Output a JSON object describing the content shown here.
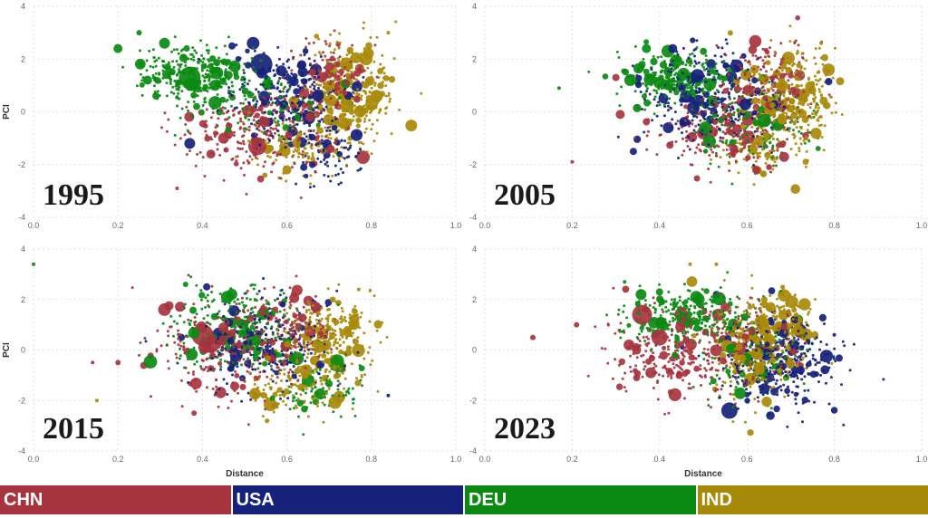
{
  "legend": {
    "items": [
      {
        "label": "CHN",
        "color": "#a6343f"
      },
      {
        "label": "USA",
        "color": "#15217a"
      },
      {
        "label": "DEU",
        "color": "#0b8a12"
      },
      {
        "label": "IND",
        "color": "#a88a0a"
      }
    ]
  },
  "chart_data": [
    {
      "type": "scatter",
      "year_label": "1995",
      "xlabel": "",
      "ylabel": "PCI",
      "xlim": [
        0.0,
        1.0
      ],
      "ylim": [
        -4,
        4
      ],
      "xticks": [
        "0.0",
        "0.2",
        "0.4",
        "0.6",
        "0.8",
        "1.0"
      ],
      "yticks": [
        "4",
        "2",
        "0",
        "-2",
        "-4"
      ],
      "series": [
        {
          "name": "CHN",
          "clusters": [
            {
              "cx": 0.52,
              "cy": -0.8,
              "sx": 0.09,
              "sy": 0.8,
              "n": 260
            },
            {
              "cx": 0.7,
              "cy": 1.2,
              "sx": 0.05,
              "sy": 0.8,
              "n": 140
            }
          ],
          "points": [
            {
              "x": 0.53,
              "y": -1.3,
              "r": 10
            },
            {
              "x": 0.45,
              "y": -1.0,
              "r": 6
            },
            {
              "x": 0.42,
              "y": -1.6,
              "r": 5
            },
            {
              "x": 0.34,
              "y": -2.9,
              "r": 2
            },
            {
              "x": 0.66,
              "y": 1.5,
              "r": 4
            }
          ]
        },
        {
          "name": "USA",
          "clusters": [
            {
              "cx": 0.6,
              "cy": 0.6,
              "sx": 0.07,
              "sy": 0.9,
              "n": 260
            },
            {
              "cx": 0.7,
              "cy": -1.5,
              "sx": 0.04,
              "sy": 0.6,
              "n": 80
            }
          ],
          "points": [
            {
              "x": 0.54,
              "y": 1.8,
              "r": 12
            },
            {
              "x": 0.52,
              "y": 2.6,
              "r": 7
            },
            {
              "x": 0.37,
              "y": -1.2,
              "r": 6
            },
            {
              "x": 0.47,
              "y": 2.5,
              "r": 4
            },
            {
              "x": 0.64,
              "y": -2.1,
              "r": 4
            }
          ]
        },
        {
          "name": "DEU",
          "clusters": [
            {
              "cx": 0.38,
              "cy": 1.4,
              "sx": 0.06,
              "sy": 0.6,
              "n": 300
            },
            {
              "cx": 0.55,
              "cy": 0.3,
              "sx": 0.08,
              "sy": 0.7,
              "n": 120
            }
          ],
          "points": [
            {
              "x": 0.2,
              "y": 2.4,
              "r": 5
            },
            {
              "x": 0.31,
              "y": 2.6,
              "r": 6
            },
            {
              "x": 0.37,
              "y": 1.3,
              "r": 12
            },
            {
              "x": 0.27,
              "y": 1.2,
              "r": 5
            },
            {
              "x": 0.29,
              "y": 0.6,
              "r": 4
            },
            {
              "x": 0.25,
              "y": 3.0,
              "r": 3
            }
          ]
        },
        {
          "name": "IND",
          "clusters": [
            {
              "cx": 0.75,
              "cy": 0.6,
              "sx": 0.05,
              "sy": 1.0,
              "n": 360
            },
            {
              "cx": 0.62,
              "cy": -1.3,
              "sx": 0.06,
              "sy": 0.6,
              "n": 100
            }
          ],
          "points": [
            {
              "x": 0.84,
              "y": 3.0,
              "r": 2
            },
            {
              "x": 0.6,
              "y": -2.2,
              "r": 5
            }
          ]
        }
      ]
    },
    {
      "type": "scatter",
      "year_label": "2005",
      "xlabel": "",
      "ylabel": "",
      "xlim": [
        0.0,
        1.0
      ],
      "ylim": [
        -4,
        4
      ],
      "xticks": [
        "0.0",
        "0.2",
        "0.4",
        "0.6",
        "0.8",
        "1.0"
      ],
      "yticks": [
        "4",
        "2",
        "0",
        "-2",
        "-4"
      ],
      "series": [
        {
          "name": "CHN",
          "clusters": [
            {
              "cx": 0.55,
              "cy": -0.7,
              "sx": 0.08,
              "sy": 0.8,
              "n": 240
            },
            {
              "cx": 0.65,
              "cy": 1.3,
              "sx": 0.05,
              "sy": 0.7,
              "n": 150
            }
          ],
          "points": [
            {
              "x": 0.31,
              "y": -0.1,
              "r": 5
            },
            {
              "x": 0.3,
              "y": 1.3,
              "r": 4
            },
            {
              "x": 0.5,
              "y": -0.8,
              "r": 7
            },
            {
              "x": 0.57,
              "y": -1.4,
              "r": 5
            },
            {
              "x": 0.2,
              "y": -1.9,
              "r": 2
            }
          ]
        },
        {
          "name": "USA",
          "clusters": [
            {
              "cx": 0.52,
              "cy": 0.5,
              "sx": 0.08,
              "sy": 0.9,
              "n": 300
            }
          ],
          "points": [
            {
              "x": 0.43,
              "y": 2.4,
              "r": 5
            },
            {
              "x": 0.42,
              "y": -0.6,
              "r": 6
            },
            {
              "x": 0.34,
              "y": -1.5,
              "r": 4
            },
            {
              "x": 0.48,
              "y": 1.2,
              "r": 4
            }
          ]
        },
        {
          "name": "DEU",
          "clusters": [
            {
              "cx": 0.44,
              "cy": 1.2,
              "sx": 0.06,
              "sy": 0.5,
              "n": 260
            },
            {
              "cx": 0.62,
              "cy": -0.5,
              "sx": 0.07,
              "sy": 0.8,
              "n": 150
            }
          ],
          "points": [
            {
              "x": 0.17,
              "y": 0.9,
              "r": 2
            },
            {
              "x": 0.37,
              "y": 2.4,
              "r": 5
            },
            {
              "x": 0.36,
              "y": 1.8,
              "r": 4
            }
          ]
        },
        {
          "name": "IND",
          "clusters": [
            {
              "cx": 0.7,
              "cy": 0.5,
              "sx": 0.05,
              "sy": 1.0,
              "n": 340
            },
            {
              "cx": 0.62,
              "cy": -1.5,
              "sx": 0.05,
              "sy": 0.5,
              "n": 90
            }
          ],
          "points": [
            {
              "x": 0.77,
              "y": 2.6,
              "r": 2
            }
          ]
        }
      ]
    },
    {
      "type": "scatter",
      "year_label": "2015",
      "xlabel": "Distance",
      "ylabel": "PCI",
      "xlim": [
        0.0,
        1.0
      ],
      "ylim": [
        -4,
        4
      ],
      "xticks": [
        "0.0",
        "0.2",
        "0.4",
        "0.6",
        "0.8",
        "1.0"
      ],
      "yticks": [
        "4",
        "2",
        "0",
        "-2",
        "-4"
      ],
      "series": [
        {
          "name": "CHN",
          "clusters": [
            {
              "cx": 0.46,
              "cy": 0.0,
              "sx": 0.09,
              "sy": 1.0,
              "n": 280
            },
            {
              "cx": 0.62,
              "cy": 0.8,
              "sx": 0.05,
              "sy": 0.8,
              "n": 120
            }
          ],
          "points": [
            {
              "x": 0.31,
              "y": 1.6,
              "r": 7
            },
            {
              "x": 0.4,
              "y": 0.6,
              "r": 12
            },
            {
              "x": 0.42,
              "y": 0.2,
              "r": 9
            },
            {
              "x": 0.2,
              "y": -0.5,
              "r": 3
            },
            {
              "x": 0.38,
              "y": -2.5,
              "r": 3
            },
            {
              "x": 0.14,
              "y": -0.5,
              "r": 2
            }
          ]
        },
        {
          "name": "USA",
          "clusters": [
            {
              "cx": 0.55,
              "cy": 0.1,
              "sx": 0.08,
              "sy": 1.0,
              "n": 280
            }
          ],
          "points": [
            {
              "x": 0.41,
              "y": 2.5,
              "r": 4
            },
            {
              "x": 0.35,
              "y": 0.5,
              "r": 4
            },
            {
              "x": 0.84,
              "y": -1.8,
              "r": 2
            }
          ]
        },
        {
          "name": "DEU",
          "clusters": [
            {
              "cx": 0.48,
              "cy": 0.8,
              "sx": 0.07,
              "sy": 0.9,
              "n": 280
            },
            {
              "cx": 0.68,
              "cy": -1.5,
              "sx": 0.05,
              "sy": 0.5,
              "n": 80
            }
          ],
          "points": [
            {
              "x": 0.0,
              "y": 3.4,
              "r": 2
            },
            {
              "x": 0.36,
              "y": 2.6,
              "r": 3
            }
          ]
        },
        {
          "name": "IND",
          "clusters": [
            {
              "cx": 0.7,
              "cy": 0.3,
              "sx": 0.05,
              "sy": 1.0,
              "n": 330
            },
            {
              "cx": 0.6,
              "cy": -1.6,
              "sx": 0.05,
              "sy": 0.4,
              "n": 80
            }
          ],
          "points": [
            {
              "x": 0.15,
              "y": -2.0,
              "r": 2
            },
            {
              "x": 0.77,
              "y": 2.4,
              "r": 2
            }
          ]
        }
      ]
    },
    {
      "type": "scatter",
      "year_label": "2023",
      "xlabel": "Distance",
      "ylabel": "",
      "xlim": [
        0.0,
        1.0
      ],
      "ylim": [
        -4,
        4
      ],
      "xticks": [
        "0.0",
        "0.2",
        "0.4",
        "0.6",
        "0.8",
        "1.0"
      ],
      "yticks": [
        "4",
        "2",
        "0",
        "-2",
        "-4"
      ],
      "series": [
        {
          "name": "CHN",
          "clusters": [
            {
              "cx": 0.46,
              "cy": -0.2,
              "sx": 0.09,
              "sy": 1.0,
              "n": 280
            },
            {
              "cx": 0.6,
              "cy": 0.5,
              "sx": 0.06,
              "sy": 0.8,
              "n": 120
            }
          ],
          "points": [
            {
              "x": 0.36,
              "y": 1.4,
              "r": 11
            },
            {
              "x": 0.4,
              "y": 0.5,
              "r": 9
            },
            {
              "x": 0.33,
              "y": 0.2,
              "r": 6
            },
            {
              "x": 0.11,
              "y": 0.5,
              "r": 3
            },
            {
              "x": 0.21,
              "y": 1.0,
              "r": 3
            },
            {
              "x": 0.38,
              "y": -0.9,
              "r": 6
            },
            {
              "x": 0.55,
              "y": 1.7,
              "r": 5
            }
          ]
        },
        {
          "name": "USA",
          "clusters": [
            {
              "cx": 0.68,
              "cy": -0.5,
              "sx": 0.07,
              "sy": 0.9,
              "n": 330
            }
          ],
          "points": [
            {
              "x": 0.56,
              "y": -2.4,
              "r": 9
            },
            {
              "x": 0.53,
              "y": 2.2,
              "r": 4
            },
            {
              "x": 0.71,
              "y": 1.2,
              "r": 4
            },
            {
              "x": 0.8,
              "y": 0.6,
              "r": 2
            }
          ]
        },
        {
          "name": "DEU",
          "clusters": [
            {
              "cx": 0.46,
              "cy": 1.3,
              "sx": 0.07,
              "sy": 0.6,
              "n": 280
            },
            {
              "cx": 0.62,
              "cy": -0.3,
              "sx": 0.06,
              "sy": 0.9,
              "n": 120
            }
          ],
          "points": [
            {
              "x": 0.4,
              "y": 2.3,
              "r": 4
            },
            {
              "x": 0.32,
              "y": 2.7,
              "r": 2
            }
          ]
        },
        {
          "name": "IND",
          "clusters": [
            {
              "cx": 0.62,
              "cy": 0.0,
              "sx": 0.05,
              "sy": 1.0,
              "n": 300
            },
            {
              "cx": 0.69,
              "cy": 1.3,
              "sx": 0.03,
              "sy": 0.6,
              "n": 90
            }
          ],
          "points": [
            {
              "x": 0.53,
              "y": 3.4,
              "r": 2
            },
            {
              "x": 0.47,
              "y": 3.4,
              "r": 2
            }
          ]
        }
      ]
    }
  ]
}
